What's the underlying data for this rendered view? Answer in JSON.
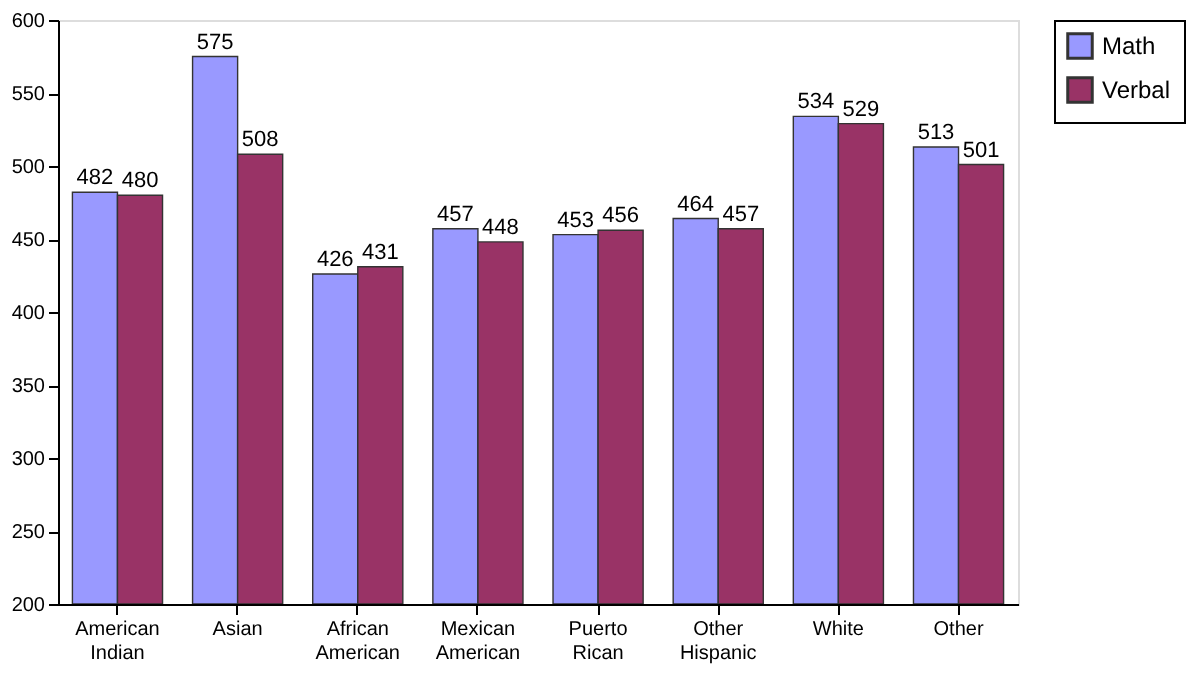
{
  "chart_data": {
    "type": "bar",
    "categories": [
      "American Indian",
      "Asian",
      "African American",
      "Mexican American",
      "Puerto Rican",
      "Other Hispanic",
      "White",
      "Other"
    ],
    "series": [
      {
        "name": "Math",
        "color": "#9999ff",
        "values": [
          482,
          575,
          426,
          457,
          453,
          464,
          534,
          513
        ]
      },
      {
        "name": "Verbal",
        "color": "#993366",
        "values": [
          480,
          508,
          431,
          448,
          456,
          457,
          529,
          501
        ]
      }
    ],
    "ylim": [
      200,
      600
    ],
    "yticks": [
      200,
      250,
      300,
      350,
      400,
      450,
      500,
      550,
      600
    ],
    "data_labels": true,
    "legend": "right",
    "grid": false
  }
}
